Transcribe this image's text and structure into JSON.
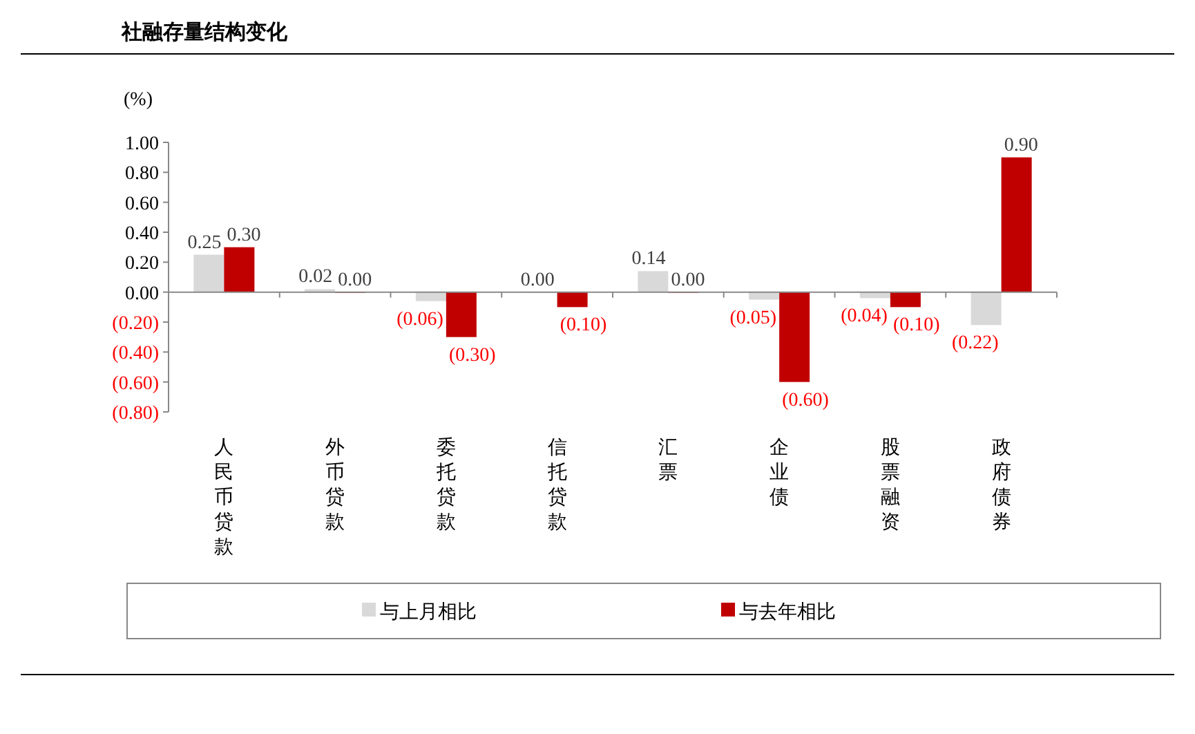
{
  "chart_data": {
    "type": "bar",
    "title": "社融存量结构变化",
    "ylabel": "(%)",
    "categories": [
      "人民币贷款",
      "外币贷款",
      "委托贷款",
      "信托贷款",
      "汇票",
      "企业债",
      "股票融资",
      "政府债券"
    ],
    "series": [
      {
        "name": "与上月相比",
        "color": "#d9d9d9",
        "values": [
          0.25,
          0.02,
          -0.06,
          0.0,
          0.14,
          -0.05,
          -0.04,
          -0.22
        ],
        "value_labels": [
          "0.25",
          "0.02",
          "(0.06)",
          "0.00",
          "0.14",
          "(0.05)",
          "(0.04)",
          "(0.22)"
        ]
      },
      {
        "name": "与去年相比",
        "color": "#c00000",
        "values": [
          0.3,
          0.0,
          -0.3,
          -0.1,
          0.0,
          -0.6,
          -0.1,
          0.9
        ],
        "value_labels": [
          "0.30",
          "0.00",
          "(0.30)",
          "(0.10)",
          "0.00",
          "(0.60)",
          "(0.10)",
          "0.90"
        ]
      }
    ],
    "ylim": [
      -0.8,
      1.0
    ],
    "yticks": [
      {
        "value": -0.8,
        "label": "(0.80)"
      },
      {
        "value": -0.6,
        "label": "(0.60)"
      },
      {
        "value": -0.4,
        "label": "(0.40)"
      },
      {
        "value": -0.2,
        "label": "(0.20)"
      },
      {
        "value": 0,
        "label": "0.00"
      },
      {
        "value": 0.2,
        "label": "0.20"
      },
      {
        "value": 0.4,
        "label": "0.40"
      },
      {
        "value": 0.6,
        "label": "0.60"
      },
      {
        "value": 0.8,
        "label": "0.80"
      },
      {
        "value": 1.0,
        "label": "1.00"
      }
    ],
    "legend": "bottom"
  }
}
